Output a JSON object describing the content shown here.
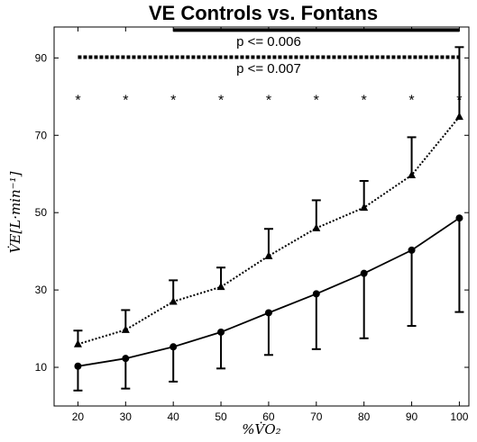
{
  "chart_data": {
    "type": "line",
    "title": "VE Controls vs. Fontans",
    "xlabel": "%V̇O₂",
    "ylabel": "V̇E[L·min⁻¹]",
    "xlim": [
      15,
      102
    ],
    "ylim": [
      0,
      98
    ],
    "x_ticks": [
      20,
      30,
      40,
      50,
      60,
      70,
      80,
      90,
      100
    ],
    "y_ticks": [
      10,
      30,
      50,
      70,
      90
    ],
    "x": [
      20,
      30,
      40,
      50,
      60,
      70,
      80,
      90,
      100
    ],
    "series": [
      {
        "marker": "triangle",
        "line_style": "dotted",
        "values": [
          16,
          19.7,
          27,
          30.8,
          38.8,
          46,
          51.3,
          59.7,
          74.8
        ],
        "error_upper": [
          19.5,
          24.8,
          32.5,
          35.8,
          45.8,
          53.2,
          58.2,
          69.5,
          92.8
        ]
      },
      {
        "marker": "circle",
        "line_style": "solid",
        "values": [
          10.3,
          12.3,
          15.3,
          19.1,
          24.1,
          29,
          34.3,
          40.3,
          48.6
        ],
        "error_lower": [
          4,
          4.5,
          6.3,
          9.7,
          13.2,
          14.7,
          17.5,
          20.7,
          24.3
        ]
      }
    ],
    "significance_stars": [
      20,
      30,
      40,
      50,
      60,
      70,
      80,
      90,
      100
    ],
    "star_symbol": "*",
    "star_y": 80,
    "annotations": [
      {
        "text": "p <= 0.006",
        "x_start": 40,
        "x_end": 100,
        "y": 97.2,
        "line_style": "solid",
        "text_x": 60,
        "text_y": 94.3
      },
      {
        "text": "p <= 0.007",
        "x_start": 20,
        "x_end": 100,
        "y": 90.2,
        "line_style": "dotted",
        "text_x": 60,
        "text_y": 87.3
      }
    ],
    "grid": false
  }
}
